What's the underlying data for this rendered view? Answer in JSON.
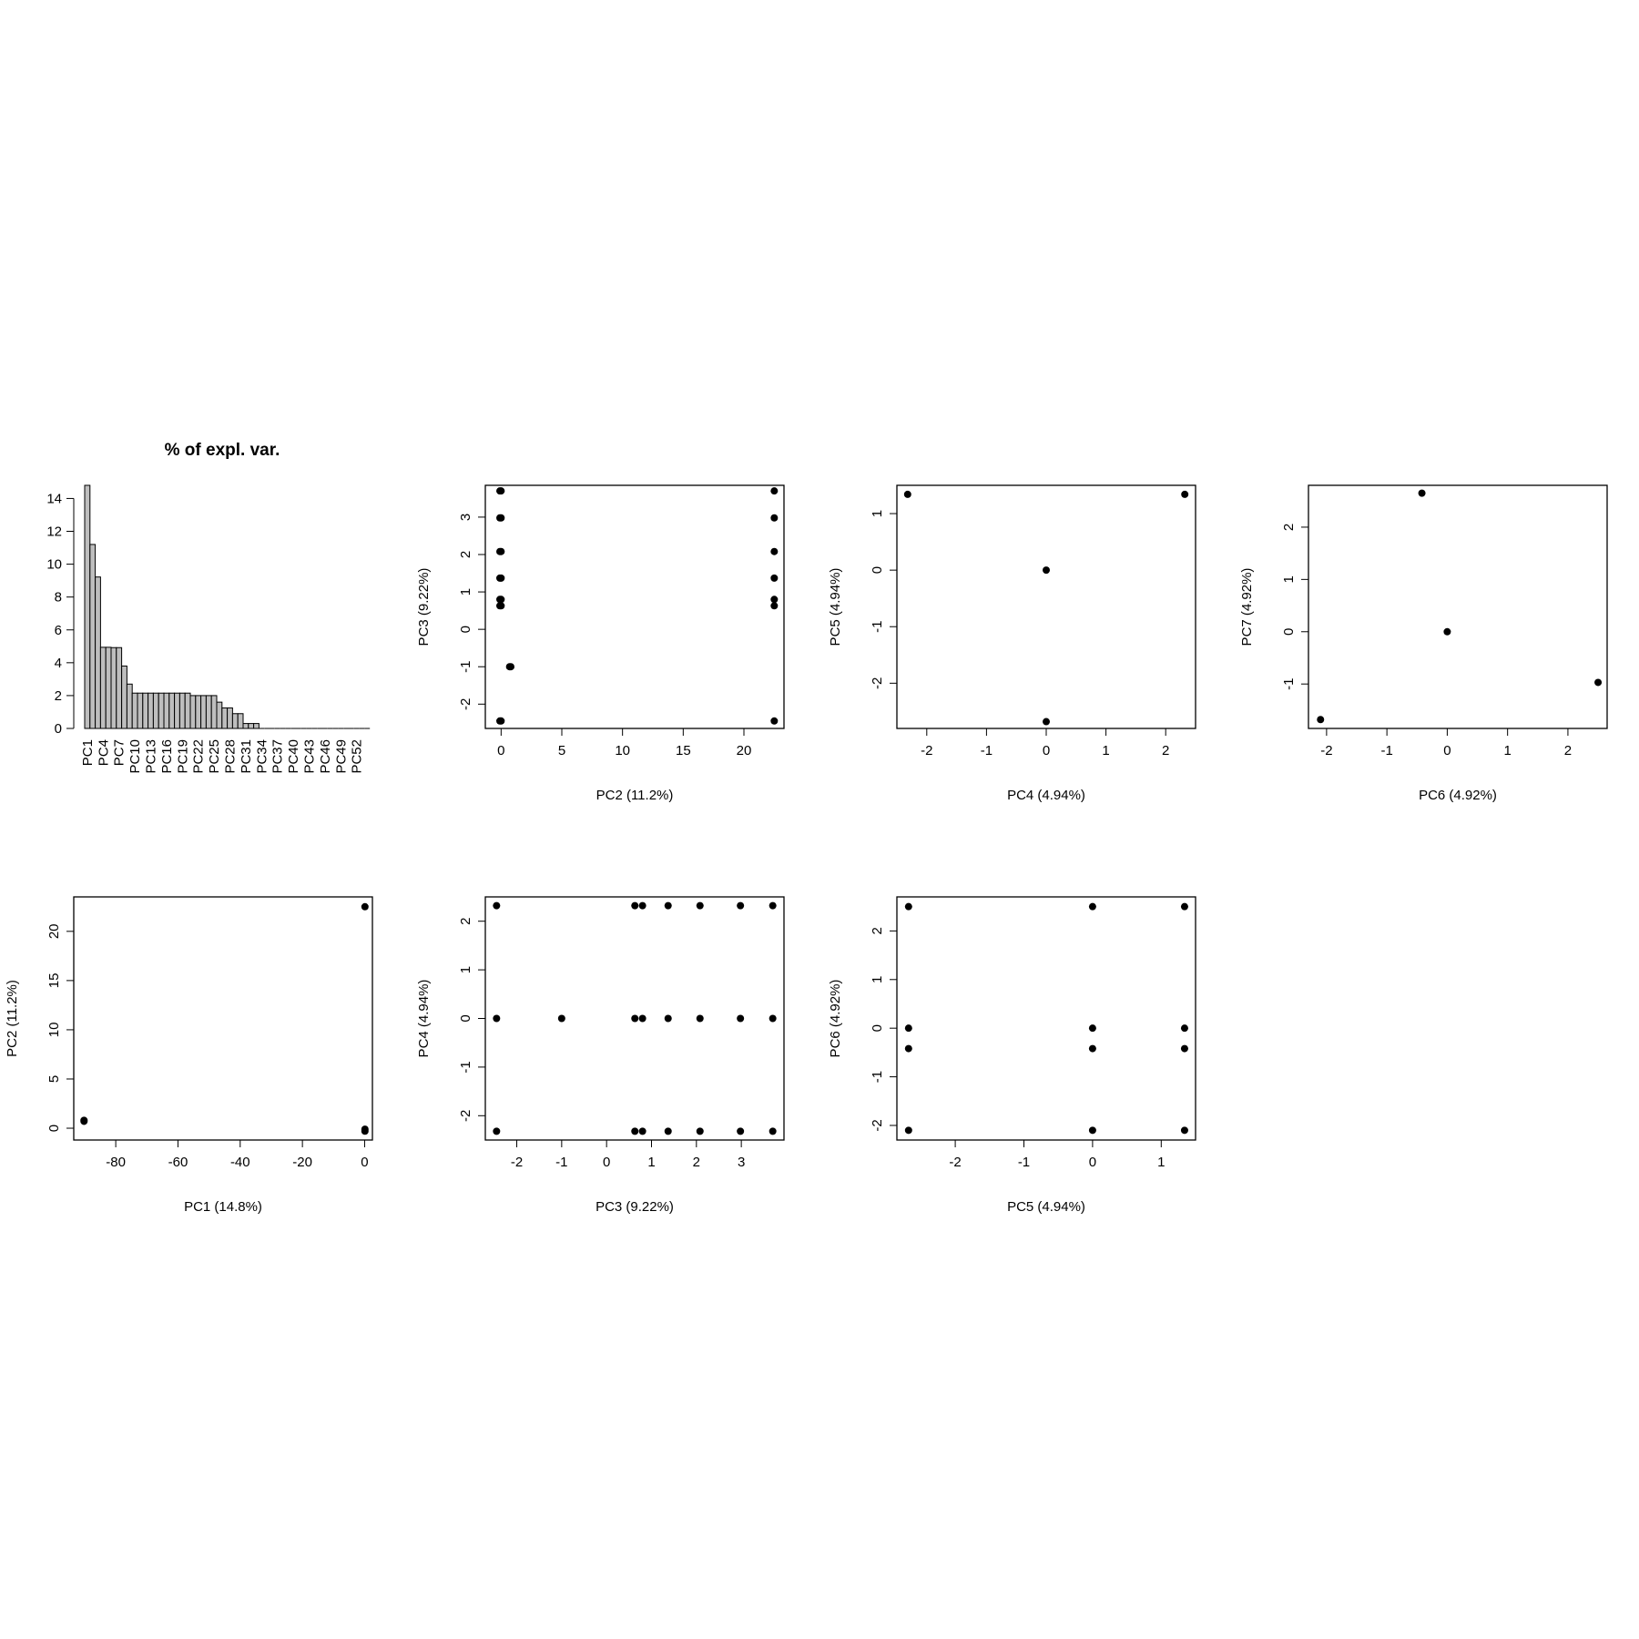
{
  "chart_data": [
    {
      "type": "bar",
      "title": "% of expl. var.",
      "xlabel": "",
      "ylabel": "",
      "ylim": [
        0,
        14.8
      ],
      "yticks": [
        0,
        2,
        4,
        6,
        8,
        10,
        12,
        14
      ],
      "categories": [
        "PC1",
        "PC2",
        "PC3",
        "PC4",
        "PC5",
        "PC6",
        "PC7",
        "PC8",
        "PC9",
        "PC10",
        "PC11",
        "PC12",
        "PC13",
        "PC14",
        "PC15",
        "PC16",
        "PC17",
        "PC18",
        "PC19",
        "PC20",
        "PC21",
        "PC22",
        "PC23",
        "PC24",
        "PC25",
        "PC26",
        "PC27",
        "PC28",
        "PC29",
        "PC30",
        "PC31",
        "PC32",
        "PC33",
        "PC34",
        "PC35",
        "PC36",
        "PC37",
        "PC38",
        "PC39",
        "PC40",
        "PC41",
        "PC42",
        "PC43",
        "PC44",
        "PC45",
        "PC46",
        "PC47",
        "PC48",
        "PC49",
        "PC50",
        "PC51",
        "PC52",
        "PC53",
        "PC54"
      ],
      "shown_category_labels": [
        "PC1",
        "PC4",
        "PC7",
        "PC10",
        "PC13",
        "PC16",
        "PC19",
        "PC22",
        "PC25",
        "PC28",
        "PC31",
        "PC34",
        "PC37",
        "PC40",
        "PC43",
        "PC46",
        "PC49",
        "PC52"
      ],
      "values": [
        14.8,
        11.2,
        9.22,
        4.94,
        4.94,
        4.92,
        4.92,
        3.8,
        2.7,
        2.15,
        2.15,
        2.15,
        2.15,
        2.15,
        2.15,
        2.15,
        2.15,
        2.15,
        2.15,
        2.15,
        2.0,
        2.0,
        2.0,
        2.0,
        2.0,
        1.6,
        1.25,
        1.25,
        0.9,
        0.9,
        0.3,
        0.3,
        0.3,
        0,
        0,
        0,
        0,
        0,
        0,
        0,
        0,
        0,
        0,
        0,
        0,
        0,
        0,
        0,
        0,
        0,
        0,
        0,
        0,
        0
      ],
      "bar_fill": "#bebebe"
    },
    {
      "type": "scatter",
      "xlabel": "PC2 (11.2%)",
      "ylabel": "PC3 (9.22%)",
      "xlim": [
        -1.3,
        23.3
      ],
      "ylim": [
        -2.65,
        3.85
      ],
      "xticks": [
        0,
        5,
        10,
        15,
        20
      ],
      "yticks": [
        -2,
        -1,
        0,
        1,
        2,
        3
      ],
      "points": [
        [
          -0.1,
          3.7
        ],
        [
          0.0,
          3.7
        ],
        [
          -0.1,
          2.98
        ],
        [
          0.0,
          2.98
        ],
        [
          -0.1,
          2.08
        ],
        [
          0.0,
          2.08
        ],
        [
          -0.1,
          1.37
        ],
        [
          0.0,
          1.37
        ],
        [
          -0.1,
          0.8
        ],
        [
          0.0,
          0.8
        ],
        [
          -0.1,
          0.63
        ],
        [
          0.0,
          0.63
        ],
        [
          0.7,
          -1.0
        ],
        [
          0.8,
          -1.0
        ],
        [
          -0.1,
          -2.45
        ],
        [
          0.0,
          -2.45
        ],
        [
          22.5,
          3.7
        ],
        [
          22.5,
          2.98
        ],
        [
          22.5,
          2.08
        ],
        [
          22.5,
          1.37
        ],
        [
          22.5,
          0.8
        ],
        [
          22.5,
          0.63
        ],
        [
          22.5,
          -2.45
        ]
      ]
    },
    {
      "type": "scatter",
      "xlabel": "PC4 (4.94%)",
      "ylabel": "PC5 (4.94%)",
      "xlim": [
        -2.5,
        2.5
      ],
      "ylim": [
        -2.8,
        1.5
      ],
      "xticks": [
        -2,
        -1,
        0,
        1,
        2
      ],
      "yticks": [
        -2,
        -1,
        0,
        1
      ],
      "points": [
        [
          -2.32,
          1.34
        ],
        [
          2.32,
          1.34
        ],
        [
          0,
          0
        ],
        [
          0,
          -2.68
        ]
      ]
    },
    {
      "type": "scatter",
      "xlabel": "PC6 (4.92%)",
      "ylabel": "PC7 (4.92%)",
      "xlim": [
        -2.3,
        2.65
      ],
      "ylim": [
        -1.85,
        2.8
      ],
      "xticks": [
        -2,
        -1,
        0,
        1,
        2
      ],
      "yticks": [
        -1,
        0,
        1,
        2
      ],
      "points": [
        [
          -0.42,
          2.65
        ],
        [
          0,
          0
        ],
        [
          2.5,
          -0.97
        ],
        [
          -2.1,
          -1.68
        ]
      ]
    },
    {
      "type": "scatter",
      "xlabel": "PC1 (14.8%)",
      "ylabel": "PC2 (11.2%)",
      "xlim": [
        -93.5,
        2.5
      ],
      "ylim": [
        -1.2,
        23.5
      ],
      "xticks": [
        -80,
        -60,
        -40,
        -20,
        0
      ],
      "yticks": [
        0,
        5,
        10,
        15,
        20
      ],
      "points": [
        [
          -90.2,
          0.7
        ],
        [
          -90.2,
          0.8
        ],
        [
          0.1,
          22.5
        ],
        [
          0.1,
          -0.1
        ],
        [
          0.1,
          -0.3
        ]
      ]
    },
    {
      "type": "scatter",
      "xlabel": "PC3 (9.22%)",
      "ylabel": "PC4 (4.94%)",
      "xlim": [
        -2.7,
        3.95
      ],
      "ylim": [
        -2.5,
        2.5
      ],
      "xticks": [
        -2,
        -1,
        0,
        1,
        2,
        3
      ],
      "yticks": [
        -2,
        -1,
        0,
        1,
        2
      ],
      "points": [
        [
          -2.45,
          2.32
        ],
        [
          0.63,
          2.32
        ],
        [
          0.8,
          2.32
        ],
        [
          1.37,
          2.32
        ],
        [
          2.08,
          2.32
        ],
        [
          2.98,
          2.32
        ],
        [
          3.7,
          2.32
        ],
        [
          -2.45,
          0
        ],
        [
          -1.0,
          0
        ],
        [
          0.63,
          0
        ],
        [
          0.8,
          0
        ],
        [
          1.37,
          0
        ],
        [
          2.08,
          0
        ],
        [
          2.98,
          0
        ],
        [
          3.7,
          0
        ],
        [
          -2.45,
          -2.32
        ],
        [
          0.63,
          -2.32
        ],
        [
          0.8,
          -2.32
        ],
        [
          1.37,
          -2.32
        ],
        [
          2.08,
          -2.32
        ],
        [
          2.98,
          -2.32
        ],
        [
          3.7,
          -2.32
        ]
      ]
    },
    {
      "type": "scatter",
      "xlabel": "PC5 (4.94%)",
      "ylabel": "PC6 (4.92%)",
      "xlim": [
        -2.85,
        1.5
      ],
      "ylim": [
        -2.3,
        2.7
      ],
      "xticks": [
        -2,
        -1,
        0,
        1
      ],
      "yticks": [
        -2,
        -1,
        0,
        1,
        2
      ],
      "points": [
        [
          -2.68,
          2.5
        ],
        [
          0,
          2.5
        ],
        [
          1.34,
          2.5
        ],
        [
          -2.68,
          0
        ],
        [
          0,
          0
        ],
        [
          1.34,
          0
        ],
        [
          -2.68,
          -0.42
        ],
        [
          0,
          -0.42
        ],
        [
          1.34,
          -0.42
        ],
        [
          -2.68,
          -2.1
        ],
        [
          0,
          -2.1
        ],
        [
          1.34,
          -2.1
        ]
      ]
    }
  ]
}
